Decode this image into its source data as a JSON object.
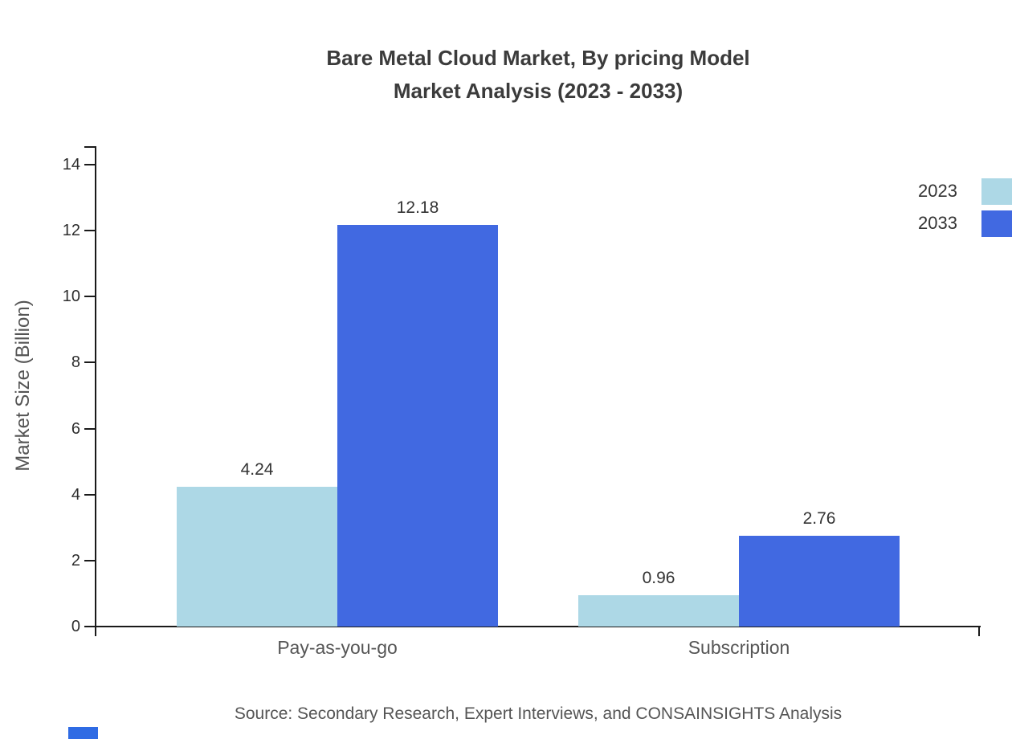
{
  "title": {
    "line1": "Bare Metal Cloud Market, By pricing Model",
    "line2": "Market Analysis (2023 - 2033)"
  },
  "chart_data": {
    "type": "bar",
    "title": "Bare Metal Cloud Market, By pricing Model — Market Analysis (2023 - 2033)",
    "categories": [
      "Pay-as-you-go",
      "Subscription"
    ],
    "series": [
      {
        "name": "2023",
        "color": "#add8e6",
        "values": [
          4.24,
          0.96
        ]
      },
      {
        "name": "2033",
        "color": "#4169e1",
        "values": [
          12.18,
          2.76
        ]
      }
    ],
    "xlabel": "",
    "ylabel": "Market Size (Billion)",
    "ylim": [
      0,
      14
    ],
    "yticks": [
      0,
      2,
      4,
      6,
      8,
      10,
      12,
      14
    ],
    "grid": false,
    "legend_position": "top-right",
    "value_label_format": "2-decimals"
  },
  "footer": {
    "source": "Source: Secondary Research, Expert Interviews, and CONSAINSIGHTS Analysis"
  },
  "colors": {
    "series_2023": "#add8e6",
    "series_2033": "#4169e1",
    "axis": "#1a1a1a",
    "logo_blue": "#2f6be4"
  }
}
